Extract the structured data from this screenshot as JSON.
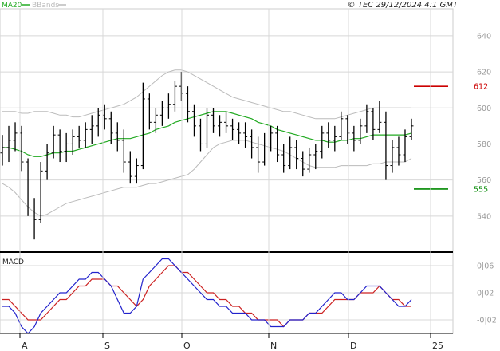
{
  "copyright": "© TEC 29/12/2024 4:1 GMT",
  "legend": {
    "ma20": "MA20",
    "bbands": "BBands",
    "ma20_color": "#22aa22",
    "bbands_color": "#bbbbbb"
  },
  "macd_label": "MACD",
  "colors": {
    "macd_line": "#2222cc",
    "signal_line": "#cc2222",
    "bar": "#000000",
    "grid": "#d8d8d8"
  },
  "chart_data": [
    {
      "type": "ohlc",
      "ylim": [
        520,
        655
      ],
      "y_ticks": [
        540,
        560,
        580,
        600,
        620,
        640
      ],
      "x_ticks": [
        "A",
        "S",
        "O",
        "N",
        "D",
        "25"
      ],
      "grid": true,
      "levels": [
        {
          "value": 612,
          "label": "612",
          "color": "#cc0000"
        },
        {
          "value": 555,
          "label": "555",
          "color": "#008800"
        }
      ],
      "ohlc": [
        [
          575,
          585,
          568,
          578
        ],
        [
          578,
          590,
          570,
          582
        ],
        [
          582,
          592,
          576,
          586
        ],
        [
          586,
          590,
          565,
          570
        ],
        [
          570,
          572,
          540,
          545
        ],
        [
          545,
          550,
          527,
          538
        ],
        [
          538,
          570,
          536,
          565
        ],
        [
          565,
          580,
          560,
          575
        ],
        [
          575,
          590,
          572,
          585
        ],
        [
          585,
          588,
          570,
          576
        ],
        [
          576,
          586,
          570,
          580
        ],
        [
          580,
          588,
          574,
          584
        ],
        [
          584,
          590,
          578,
          582
        ],
        [
          582,
          592,
          578,
          588
        ],
        [
          588,
          596,
          580,
          590
        ],
        [
          590,
          600,
          584,
          596
        ],
        [
          596,
          602,
          588,
          594
        ],
        [
          594,
          598,
          580,
          586
        ],
        [
          586,
          592,
          576,
          582
        ],
        [
          582,
          588,
          564,
          570
        ],
        [
          570,
          576,
          558,
          562
        ],
        [
          562,
          572,
          558,
          568
        ],
        [
          568,
          614,
          566,
          605
        ],
        [
          605,
          608,
          588,
          592
        ],
        [
          592,
          600,
          586,
          596
        ],
        [
          596,
          604,
          590,
          600
        ],
        [
          600,
          608,
          594,
          602
        ],
        [
          602,
          615,
          598,
          612
        ],
        [
          612,
          620,
          604,
          608
        ],
        [
          608,
          612,
          592,
          598
        ],
        [
          598,
          602,
          584,
          590
        ],
        [
          590,
          594,
          576,
          580
        ],
        [
          580,
          600,
          578,
          596
        ],
        [
          596,
          600,
          586,
          590
        ],
        [
          590,
          596,
          584,
          592
        ],
        [
          592,
          598,
          586,
          590
        ],
        [
          590,
          594,
          582,
          588
        ],
        [
          588,
          592,
          580,
          586
        ],
        [
          586,
          592,
          578,
          584
        ],
        [
          584,
          588,
          572,
          578
        ],
        [
          578,
          584,
          564,
          570
        ],
        [
          570,
          586,
          568,
          580
        ],
        [
          580,
          590,
          576,
          586
        ],
        [
          586,
          590,
          570,
          574
        ],
        [
          574,
          580,
          564,
          568
        ],
        [
          568,
          584,
          566,
          578
        ],
        [
          578,
          582,
          566,
          572
        ],
        [
          572,
          576,
          562,
          566
        ],
        [
          566,
          578,
          564,
          574
        ],
        [
          574,
          580,
          566,
          576
        ],
        [
          576,
          590,
          572,
          586
        ],
        [
          586,
          592,
          578,
          582
        ],
        [
          582,
          590,
          576,
          584
        ],
        [
          584,
          598,
          582,
          594
        ],
        [
          594,
          596,
          580,
          586
        ],
        [
          586,
          590,
          576,
          582
        ],
        [
          582,
          594,
          580,
          590
        ],
        [
          590,
          602,
          586,
          598
        ],
        [
          598,
          600,
          582,
          588
        ],
        [
          588,
          604,
          586,
          592
        ],
        [
          592,
          598,
          560,
          568
        ],
        [
          568,
          582,
          564,
          578
        ],
        [
          578,
          584,
          568,
          574
        ],
        [
          574,
          588,
          570,
          584
        ],
        [
          584,
          594,
          582,
          590
        ]
      ],
      "ma20": [
        578,
        578,
        577,
        576,
        574,
        573,
        573,
        574,
        575,
        575,
        576,
        576,
        577,
        578,
        579,
        580,
        581,
        582,
        583,
        583,
        583,
        584,
        585,
        586,
        588,
        589,
        590,
        592,
        593,
        594,
        595,
        596,
        597,
        598,
        598,
        598,
        597,
        596,
        595,
        594,
        592,
        591,
        590,
        588,
        587,
        586,
        585,
        584,
        583,
        582,
        582,
        581,
        581,
        582,
        582,
        583,
        583,
        584,
        585,
        585,
        585,
        585,
        585,
        585,
        586
      ],
      "bb_upper": [
        598,
        598,
        598,
        597,
        597,
        598,
        598,
        598,
        597,
        596,
        596,
        595,
        595,
        596,
        597,
        598,
        599,
        600,
        601,
        602,
        604,
        606,
        609,
        612,
        615,
        618,
        620,
        621,
        621,
        620,
        618,
        616,
        614,
        612,
        610,
        608,
        606,
        605,
        604,
        603,
        602,
        601,
        600,
        599,
        598,
        598,
        597,
        596,
        595,
        594,
        594,
        594,
        594,
        595,
        596,
        597,
        598,
        599,
        600,
        600,
        600,
        600,
        600,
        600,
        600
      ],
      "bb_lower": [
        558,
        556,
        553,
        549,
        545,
        542,
        540,
        541,
        543,
        545,
        547,
        548,
        549,
        550,
        551,
        552,
        553,
        554,
        555,
        556,
        556,
        556,
        557,
        558,
        558,
        559,
        560,
        561,
        562,
        563,
        566,
        570,
        574,
        578,
        580,
        581,
        582,
        582,
        582,
        581,
        580,
        579,
        578,
        577,
        576,
        574,
        572,
        570,
        568,
        567,
        567,
        567,
        567,
        568,
        568,
        568,
        568,
        568,
        569,
        569,
        570,
        570,
        570,
        570,
        572
      ]
    },
    {
      "type": "line",
      "title": "MACD",
      "ylim": [
        -4,
        8
      ],
      "y_ticks": [
        -2,
        2,
        6
      ],
      "y_tick_labels": [
        "-0|02",
        "0|02",
        "0|06"
      ],
      "series": [
        {
          "values": [
            0,
            0,
            -1,
            -3,
            -4,
            -3,
            -1,
            0,
            1,
            2,
            2,
            3,
            4,
            4,
            5,
            5,
            4,
            3,
            1,
            -1,
            -1,
            0,
            4,
            5,
            6,
            7,
            7,
            6,
            5,
            4,
            3,
            2,
            1,
            1,
            0,
            0,
            -1,
            -1,
            -1,
            -2,
            -2,
            -2,
            -3,
            -3,
            -3,
            -2,
            -2,
            -2,
            -1,
            -1,
            0,
            1,
            2,
            2,
            1,
            1,
            2,
            3,
            3,
            3,
            2,
            1,
            0,
            0,
            1
          ]
        },
        {
          "values": [
            1,
            1,
            0,
            -1,
            -2,
            -2,
            -2,
            -1,
            0,
            1,
            1,
            2,
            3,
            3,
            4,
            4,
            4,
            3,
            3,
            2,
            1,
            0,
            1,
            3,
            4,
            5,
            6,
            6,
            5,
            5,
            4,
            3,
            2,
            2,
            1,
            1,
            0,
            0,
            -1,
            -1,
            -2,
            -2,
            -2,
            -2,
            -3,
            -2,
            -2,
            -2,
            -1,
            -1,
            -1,
            0,
            1,
            1,
            1,
            1,
            2,
            2,
            2,
            3,
            2,
            1,
            1,
            0,
            0
          ]
        }
      ]
    }
  ]
}
